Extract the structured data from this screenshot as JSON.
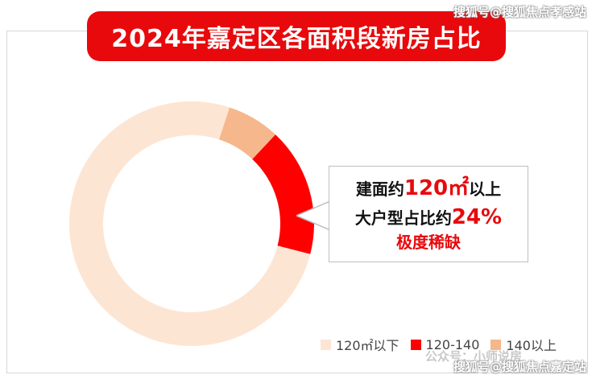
{
  "header": {
    "title": "2024年嘉定区各面积段新房占比"
  },
  "watermarks": {
    "top": "搜狐号@搜狐焦点孝感站",
    "bottom": "搜狐号@搜狐焦点嘉定站",
    "faded": "公众号：小师说房"
  },
  "callout": {
    "line1_pre": "建面约",
    "line1_highlight": "120㎡",
    "line1_post": "以上",
    "line2_pre": "大户型占比约",
    "line2_highlight": "24%",
    "line3": "极度稀缺"
  },
  "chart_data": {
    "type": "pie",
    "title": "2024年嘉定区各面积段新房占比",
    "categories": [
      "120㎡以下",
      "120-140",
      "140以上"
    ],
    "values": [
      76,
      17,
      7
    ],
    "colors": [
      "#fde5d4",
      "#ff0000",
      "#f5b78b"
    ],
    "legend_position": "bottom-right",
    "donut": true
  }
}
